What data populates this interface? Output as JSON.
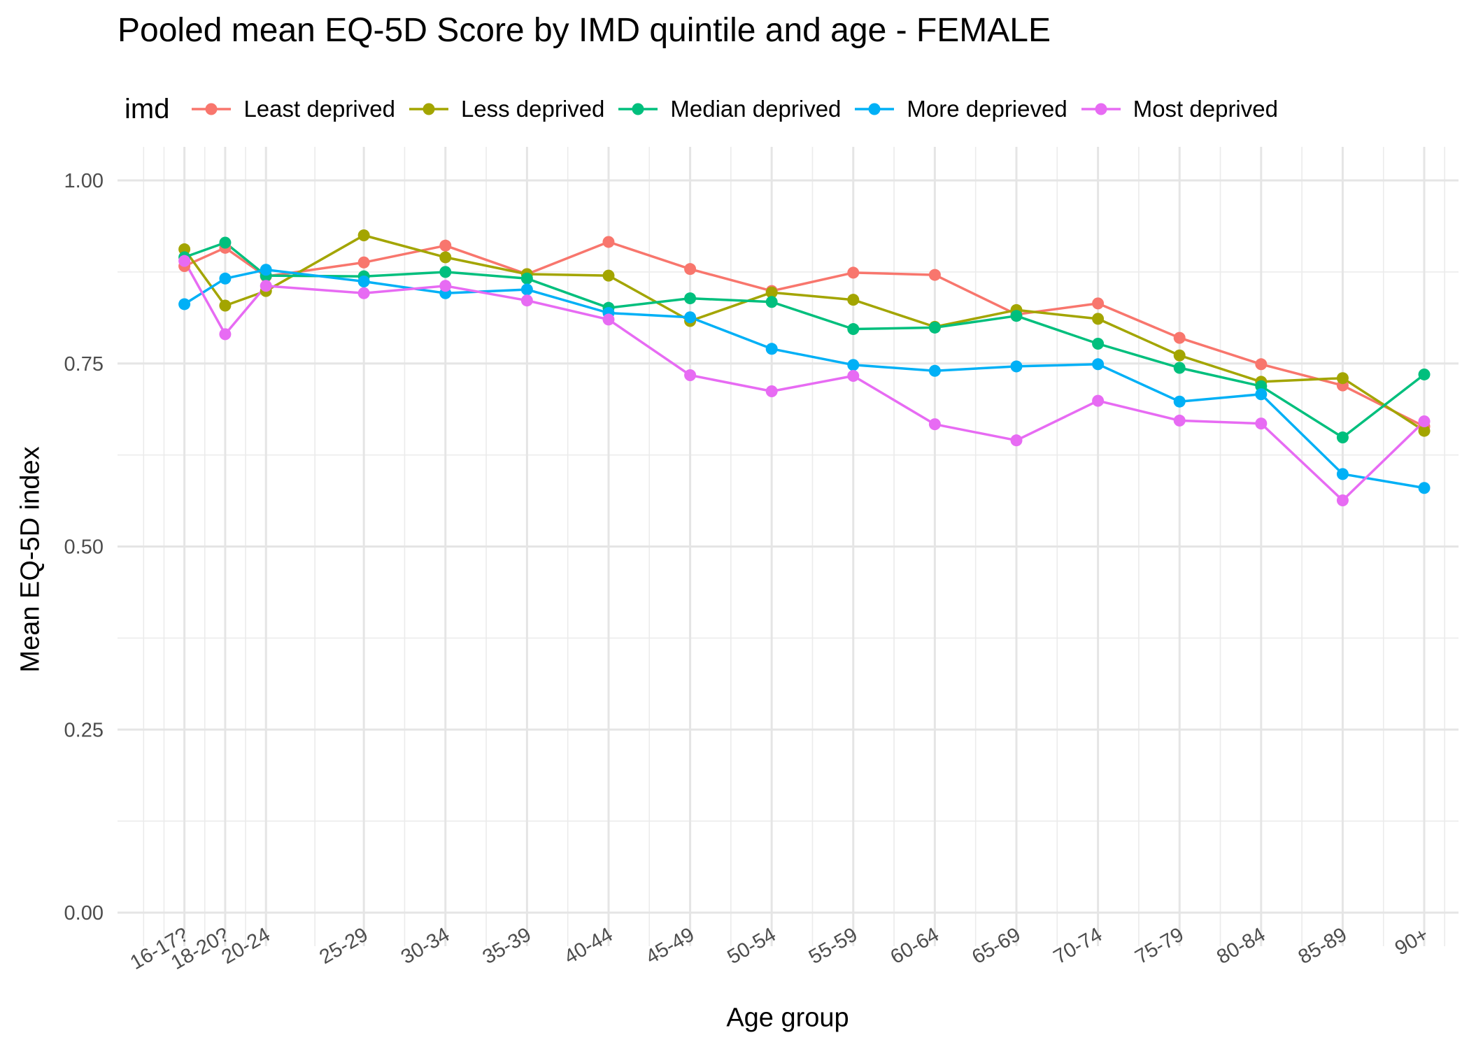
{
  "chart_data": {
    "type": "line",
    "title": "Pooled mean EQ-5D Score by IMD quintile and age - FEMALE",
    "xlabel": "Age group",
    "ylabel": "Mean EQ-5D index",
    "legend_title": "imd",
    "legend_position": "top",
    "grid": true,
    "ylim": [
      0,
      1
    ],
    "yticks": [
      "0.00",
      "0.25",
      "0.50",
      "0.75",
      "1.00"
    ],
    "categories": [
      "16-17?",
      "18-20?",
      "20-24",
      "25-29",
      "30-34",
      "35-39",
      "40-44",
      "45-49",
      "50-54",
      "55-59",
      "60-64",
      "65-69",
      "70-74",
      "75-79",
      "80-84",
      "85-89",
      "90+"
    ],
    "x": [
      16.5,
      19,
      21.5,
      27.5,
      32.5,
      37.5,
      42.5,
      47.5,
      52.5,
      57.5,
      62.5,
      67.5,
      72.5,
      77.5,
      82.5,
      87.5,
      92.5
    ],
    "xlim": [
      12.4,
      94.6
    ],
    "series": [
      {
        "name": "Least deprived",
        "color": "#F8766D",
        "values": [
          0.883,
          0.908,
          0.869,
          0.888,
          0.911,
          0.872,
          0.916,
          0.879,
          0.849,
          0.874,
          0.871,
          0.817,
          0.832,
          0.785,
          0.749,
          0.72,
          0.664
        ]
      },
      {
        "name": "Less deprived",
        "color": "#A3A500",
        "values": [
          0.906,
          0.829,
          0.849,
          0.925,
          0.895,
          0.872,
          0.87,
          0.808,
          0.847,
          0.837,
          0.8,
          0.823,
          0.811,
          0.761,
          0.725,
          0.73,
          0.658
        ]
      },
      {
        "name": "Median deprived",
        "color": "#00BF7D",
        "values": [
          0.895,
          0.915,
          0.87,
          0.869,
          0.875,
          0.866,
          0.826,
          0.839,
          0.834,
          0.797,
          0.799,
          0.815,
          0.777,
          0.744,
          0.719,
          0.649,
          0.735
        ]
      },
      {
        "name": "More deprieved",
        "color": "#00B0F6",
        "values": [
          0.831,
          0.866,
          0.878,
          0.862,
          0.846,
          0.851,
          0.819,
          0.813,
          0.77,
          0.748,
          0.74,
          0.746,
          0.749,
          0.698,
          0.708,
          0.599,
          0.58
        ]
      },
      {
        "name": "Most deprived",
        "color": "#E76BF3",
        "values": [
          0.89,
          0.79,
          0.856,
          0.846,
          0.856,
          0.836,
          0.81,
          0.734,
          0.712,
          0.733,
          0.667,
          0.645,
          0.699,
          0.672,
          0.668,
          0.563,
          0.671
        ]
      }
    ]
  }
}
